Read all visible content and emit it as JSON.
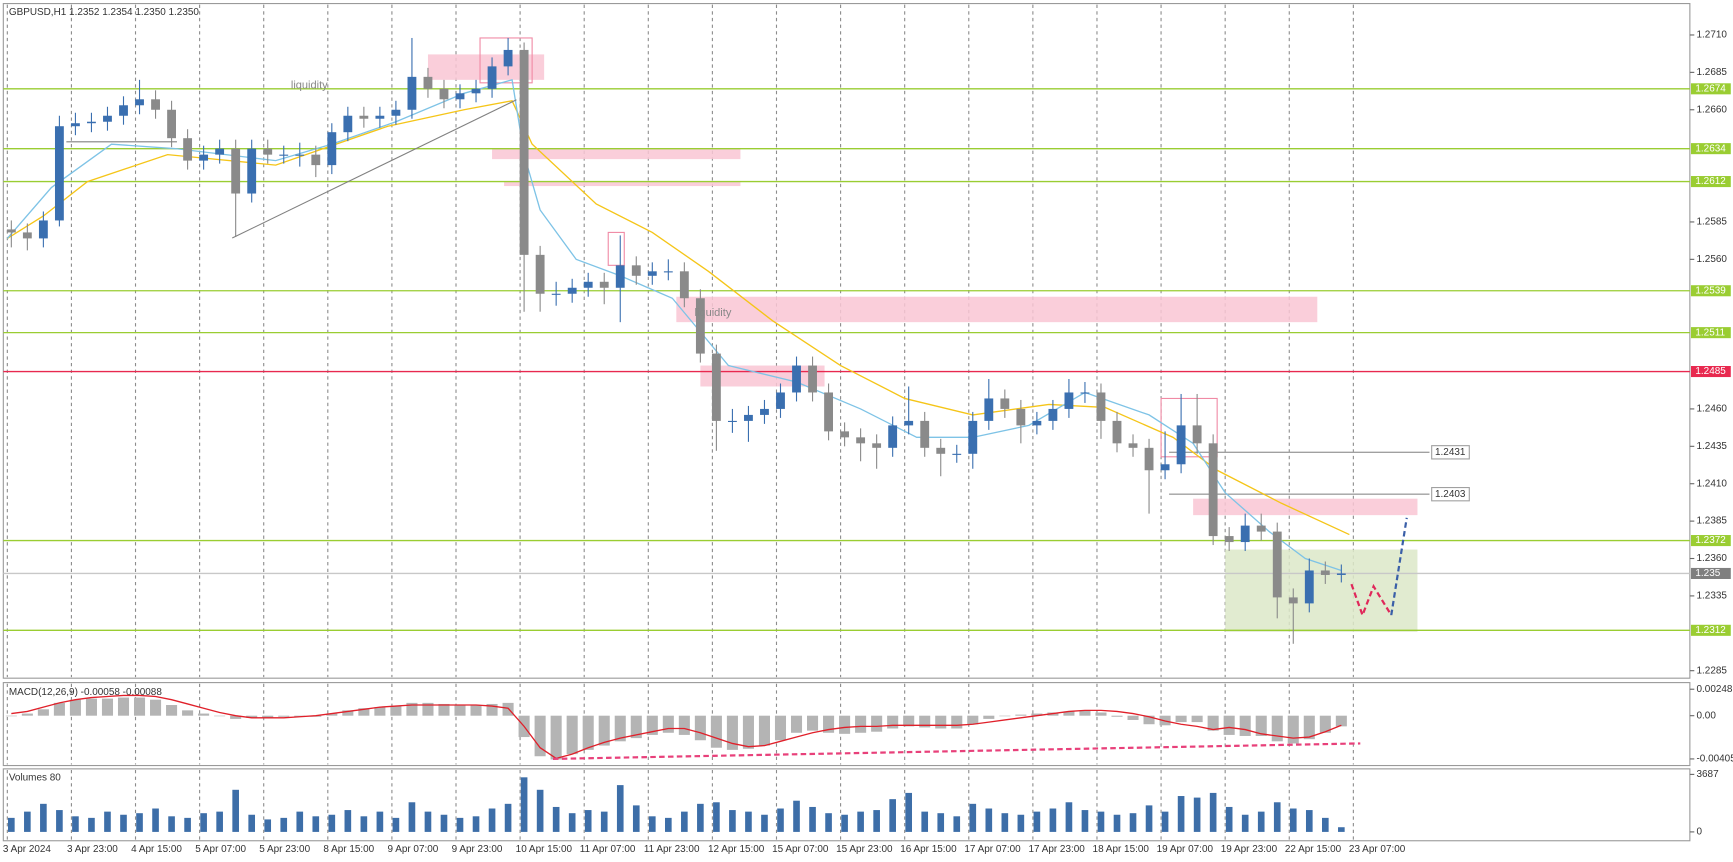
{
  "header": "GBPUSD,H1  1.2352 1.2354 1.2350 1.2350",
  "chart_data": [
    {
      "type": "candlestick",
      "up_color": "#3a6fb0",
      "down_color": "#8a8a8a",
      "xlim": [
        0,
        421
      ],
      "ylim": [
        1.228,
        1.2731
      ],
      "xticks": [
        {
          "value": 1,
          "label": "3 Apr 2024"
        },
        {
          "value": 17,
          "label": "3 Apr 23:00"
        },
        {
          "value": 33,
          "label": "4 Apr 15:00"
        },
        {
          "value": 49,
          "label": "5 Apr 07:00"
        },
        {
          "value": 65,
          "label": "5 Apr 23:00"
        },
        {
          "value": 81,
          "label": "8 Apr 15:00"
        },
        {
          "value": 97,
          "label": "9 Apr 07:00"
        },
        {
          "value": 113,
          "label": "9 Apr 23:00"
        },
        {
          "value": 129,
          "label": "10 Apr 15:00"
        },
        {
          "value": 145,
          "label": "11 Apr 07:00"
        },
        {
          "value": 161,
          "label": "11 Apr 23:00"
        },
        {
          "value": 177,
          "label": "12 Apr 15:00"
        },
        {
          "value": 193,
          "label": "15 Apr 07:00"
        },
        {
          "value": 209,
          "label": "15 Apr 23:00"
        },
        {
          "value": 225,
          "label": "16 Apr 15:00"
        },
        {
          "value": 241,
          "label": "17 Apr 07:00"
        },
        {
          "value": 257,
          "label": "17 Apr 23:00"
        },
        {
          "value": 273,
          "label": "18 Apr 15:00"
        },
        {
          "value": 289,
          "label": "19 Apr 07:00"
        },
        {
          "value": 305,
          "label": "19 Apr 23:00"
        },
        {
          "value": 321,
          "label": "22 Apr 15:00"
        },
        {
          "value": 337,
          "label": "23 Apr 07:00"
        }
      ],
      "yticks": [
        {
          "value": 1.271,
          "label": "1.2710"
        },
        1.2685,
        {
          "value": 1.266,
          "label": "1.2660"
        },
        1.2585,
        {
          "value": 1.256,
          "label": "1.2560"
        },
        {
          "value": 1.246,
          "label": "1.2460"
        },
        1.2435,
        {
          "value": 1.241,
          "label": "1.2410"
        },
        1.2385,
        {
          "value": 1.236,
          "label": "1.2360"
        },
        1.2335,
        1.2285
      ],
      "x": [
        2,
        6,
        10,
        14,
        18,
        22,
        26,
        30,
        34,
        38,
        42,
        46,
        50,
        54,
        58,
        62,
        66,
        70,
        74,
        78,
        82,
        86,
        90,
        94,
        98,
        102,
        106,
        110,
        114,
        118,
        122,
        126,
        130,
        134,
        138,
        142,
        146,
        150,
        154,
        158,
        162,
        166,
        170,
        174,
        178,
        182,
        186,
        190,
        194,
        198,
        202,
        206,
        210,
        214,
        218,
        222,
        226,
        230,
        234,
        238,
        242,
        246,
        250,
        254,
        258,
        262,
        266,
        270,
        274,
        278,
        282,
        286,
        290,
        294,
        298,
        302,
        306,
        310,
        314,
        318,
        322,
        326,
        330,
        334
      ],
      "open": [
        1.258,
        1.2578,
        1.2574,
        1.2586,
        1.2649,
        1.2651,
        1.2652,
        1.2656,
        1.2663,
        1.2667,
        1.266,
        1.2641,
        1.2626,
        1.263,
        1.2634,
        1.2604,
        1.2634,
        1.263,
        1.263,
        1.263,
        1.2623,
        1.2645,
        1.2656,
        1.2654,
        1.2656,
        1.266,
        1.2682,
        1.2674,
        1.2667,
        1.2671,
        1.2674,
        1.2689,
        1.27,
        1.2563,
        1.2537,
        1.2537,
        1.2541,
        1.2545,
        1.2541,
        1.2556,
        1.2549,
        1.2552,
        1.2552,
        1.2534,
        1.2497,
        1.2452,
        1.2452,
        1.2456,
        1.246,
        1.2471,
        1.2489,
        1.2471,
        1.2445,
        1.2441,
        1.2437,
        1.2434,
        1.2449,
        1.2452,
        1.2434,
        1.243,
        1.243,
        1.2452,
        1.2467,
        1.246,
        1.2449,
        1.2452,
        1.246,
        1.2471,
        1.2471,
        1.2452,
        1.2437,
        1.2434,
        1.2419,
        1.2423,
        1.2449,
        1.2437,
        1.2375,
        1.2371,
        1.2382,
        1.2378,
        1.2334,
        1.233,
        1.2352,
        1.2349
      ],
      "high": [
        1.2586,
        1.2584,
        1.2592,
        1.2656,
        1.2658,
        1.2658,
        1.2662,
        1.2669,
        1.268,
        1.2673,
        1.2666,
        1.2647,
        1.2636,
        1.264,
        1.264,
        1.264,
        1.264,
        1.2636,
        1.2638,
        1.2636,
        1.2651,
        1.2662,
        1.2662,
        1.2662,
        1.2666,
        1.2708,
        1.2688,
        1.268,
        1.2677,
        1.268,
        1.2695,
        1.2708,
        1.2705,
        1.2569,
        1.2545,
        1.2547,
        1.2551,
        1.2551,
        1.2576,
        1.2562,
        1.2558,
        1.256,
        1.2558,
        1.254,
        1.2503,
        1.246,
        1.2462,
        1.2466,
        1.2477,
        1.2495,
        1.2495,
        1.2477,
        1.2451,
        1.2447,
        1.2443,
        1.2455,
        1.2475,
        1.2458,
        1.244,
        1.2436,
        1.2458,
        1.248,
        1.2473,
        1.2466,
        1.2458,
        1.2466,
        1.248,
        1.2478,
        1.2477,
        1.2458,
        1.2443,
        1.244,
        1.2445,
        1.247,
        1.247,
        1.2443,
        1.2381,
        1.239,
        1.239,
        1.2384,
        1.234,
        1.236,
        1.2358,
        1.2356
      ],
      "low": [
        1.2568,
        1.2566,
        1.2568,
        1.2582,
        1.2643,
        1.2645,
        1.2646,
        1.265,
        1.2657,
        1.2654,
        1.2635,
        1.262,
        1.262,
        1.2624,
        1.2575,
        1.2598,
        1.2624,
        1.2624,
        1.2622,
        1.2615,
        1.2617,
        1.2639,
        1.2648,
        1.2648,
        1.265,
        1.2654,
        1.2668,
        1.2661,
        1.2661,
        1.2665,
        1.2668,
        1.2683,
        1.2525,
        1.2525,
        1.2529,
        1.2531,
        1.2535,
        1.253,
        1.2518,
        1.2543,
        1.2543,
        1.2546,
        1.2528,
        1.2491,
        1.2432,
        1.2444,
        1.2438,
        1.245,
        1.2454,
        1.2465,
        1.2465,
        1.2439,
        1.2435,
        1.2425,
        1.242,
        1.2428,
        1.2443,
        1.2428,
        1.2415,
        1.2424,
        1.242,
        1.2446,
        1.2454,
        1.2437,
        1.2443,
        1.2446,
        1.2454,
        1.2464,
        1.244,
        1.2431,
        1.2428,
        1.239,
        1.2413,
        1.2417,
        1.243,
        1.2369,
        1.2365,
        1.2365,
        1.2372,
        1.232,
        1.2303,
        1.2324,
        1.2343,
        1.2344
      ],
      "close": [
        1.2578,
        1.2574,
        1.2586,
        1.2649,
        1.2651,
        1.2652,
        1.2656,
        1.2663,
        1.2667,
        1.266,
        1.2641,
        1.2626,
        1.263,
        1.2634,
        1.2604,
        1.2634,
        1.263,
        1.263,
        1.263,
        1.2623,
        1.2645,
        1.2656,
        1.2654,
        1.2656,
        1.266,
        1.2682,
        1.2674,
        1.2667,
        1.2671,
        1.2674,
        1.2689,
        1.27,
        1.2563,
        1.2537,
        1.2537,
        1.2541,
        1.2545,
        1.2541,
        1.2556,
        1.2549,
        1.2552,
        1.2552,
        1.2534,
        1.2497,
        1.2452,
        1.2452,
        1.2456,
        1.246,
        1.2471,
        1.2489,
        1.2471,
        1.2445,
        1.2441,
        1.2437,
        1.2434,
        1.2449,
        1.2452,
        1.2434,
        1.243,
        1.243,
        1.2452,
        1.2467,
        1.246,
        1.2449,
        1.2452,
        1.246,
        1.2471,
        1.2471,
        1.2452,
        1.2437,
        1.2434,
        1.2419,
        1.2423,
        1.2449,
        1.2437,
        1.2375,
        1.2371,
        1.2382,
        1.2378,
        1.2334,
        1.233,
        1.2352,
        1.2349,
        1.235
      ],
      "ma": [
        {
          "color": "#f5c518",
          "x": [
            1,
            10,
            21,
            41,
            68,
            96,
            115,
            127,
            132,
            148,
            162,
            176,
            192,
            209,
            225,
            242,
            261,
            275,
            292,
            303,
            319,
            336
          ],
          "values": [
            1.2574,
            1.2589,
            1.2612,
            1.263,
            1.2623,
            1.2649,
            1.266,
            1.2666,
            1.2637,
            1.2597,
            1.2578,
            1.2552,
            1.2519,
            1.2489,
            1.2467,
            1.2456,
            1.2463,
            1.2461,
            1.2441,
            1.2419,
            1.2397,
            1.2376
          ]
        },
        {
          "color": "#7ec3e6",
          "x": [
            1,
            12,
            27,
            43,
            68,
            82,
            98,
            115,
            127,
            130,
            134,
            143,
            154,
            167,
            181,
            198,
            214,
            228,
            242,
            256,
            270,
            286,
            297,
            305,
            316,
            325,
            334
          ],
          "values": [
            1.2574,
            1.2608,
            1.2637,
            1.2634,
            1.2626,
            1.2637,
            1.2652,
            1.2671,
            1.268,
            1.263,
            1.2593,
            1.256,
            1.2549,
            1.2534,
            1.2489,
            1.2478,
            1.246,
            1.2441,
            1.2441,
            1.2449,
            1.2471,
            1.2456,
            1.2437,
            1.2404,
            1.2378,
            1.236,
            1.2352
          ]
        }
      ],
      "zones": [
        {
          "x": [
            106,
            135
          ],
          "y": [
            1.2697,
            1.268
          ],
          "fill": "#f9c6d3"
        },
        {
          "x": [
            122,
            184
          ],
          "y": [
            1.2634,
            1.2627
          ],
          "fill": "#f9c6d3"
        },
        {
          "x": [
            125,
            184
          ],
          "y": [
            1.2612,
            1.2609
          ],
          "fill": "#f9c6d3"
        },
        {
          "x": [
            168,
            328
          ],
          "y": [
            1.2535,
            1.2518
          ],
          "fill": "#f9c6d3"
        },
        {
          "x": [
            174,
            205
          ],
          "y": [
            1.2489,
            1.2475
          ],
          "fill": "#f9c6d3"
        },
        {
          "x": [
            297,
            353
          ],
          "y": [
            1.24,
            1.2389
          ],
          "fill": "#f9c6d3"
        },
        {
          "x": [
            305,
            353
          ],
          "y": [
            1.2366,
            1.2311
          ],
          "fill": "#dce8c8"
        },
        {
          "x": [
            119,
            132
          ],
          "y": [
            1.2708,
            1.2678
          ],
          "stroke": "#f08aa5"
        },
        {
          "x": [
            151,
            155
          ],
          "y": [
            1.2578,
            1.2556
          ],
          "stroke": "#f08aa5"
        },
        {
          "x": [
            289,
            303
          ],
          "y": [
            1.2467,
            1.2428
          ],
          "stroke": "#f08aa5"
        }
      ],
      "levels": [
        {
          "value": 1.2674,
          "color": "#9acd32"
        },
        {
          "value": 1.2634,
          "color": "#9acd32"
        },
        {
          "value": 1.2612,
          "color": "#9acd32"
        },
        {
          "value": 1.2539,
          "color": "#9acd32"
        },
        {
          "value": 1.2511,
          "color": "#9acd32"
        },
        {
          "value": 1.2485,
          "color": "#e8294f"
        },
        {
          "value": 1.2372,
          "color": "#9acd32"
        },
        {
          "value": 1.2312,
          "color": "#9acd32"
        },
        {
          "value": 1.235,
          "color": "#c8c8c8",
          "label_color": "#7f7f7f"
        },
        {
          "value": 1.2431,
          "color": "#a0a0a0",
          "from": 291,
          "to": 356,
          "style": "box"
        },
        {
          "value": 1.2403,
          "color": "#a0a0a0",
          "from": 291,
          "to": 356,
          "style": "box"
        }
      ],
      "annotations": [
        "liquidity",
        "liquidity"
      ]
    },
    {
      "type": "macd",
      "title": "MACD(12,26,9) -0.00058 -0.00088",
      "ylim": [
        -0.00467,
        0.0031
      ],
      "yticks": [
        0.00248,
        {
          "value": 0,
          "label": "0.00"
        },
        -0.00405
      ],
      "histogram_color": "#b4b4b4",
      "signal_color": "#e0202a",
      "histogram": [
        0.0,
        0.0002,
        0.0006,
        0.0012,
        0.0015,
        0.0016,
        0.0016,
        0.0017,
        0.0017,
        0.0015,
        0.001,
        0.0005,
        0.0002,
        0.0,
        -0.0003,
        -0.0002,
        -0.0002,
        -0.0001,
        -0.0001,
        -0.0001,
        0.0002,
        0.0005,
        0.0007,
        0.0008,
        0.0009,
        0.0012,
        0.0012,
        0.0011,
        0.001,
        0.001,
        0.0011,
        0.0012,
        -0.002,
        -0.0038,
        -0.0041,
        -0.0036,
        -0.0032,
        -0.0028,
        -0.0024,
        -0.0021,
        -0.0018,
        -0.0016,
        -0.0018,
        -0.0023,
        -0.003,
        -0.0032,
        -0.0031,
        -0.0028,
        -0.0023,
        -0.0016,
        -0.0014,
        -0.0016,
        -0.0017,
        -0.0016,
        -0.0015,
        -0.0012,
        -0.001,
        -0.0011,
        -0.0012,
        -0.0012,
        -0.0008,
        -0.0003,
        0.0,
        0.0001,
        0.0002,
        0.0003,
        0.0004,
        0.0005,
        0.0003,
        -0.0001,
        -0.0004,
        -0.0008,
        -0.0009,
        -0.0006,
        -0.0006,
        -0.0014,
        -0.0018,
        -0.0019,
        -0.0019,
        -0.0024,
        -0.0026,
        -0.0022,
        -0.0016,
        -0.001
      ],
      "signal": [
        0.0002,
        0.0004,
        0.0008,
        0.0012,
        0.0015,
        0.0017,
        0.0018,
        0.0019,
        0.0019,
        0.0018,
        0.0015,
        0.0011,
        0.0007,
        0.0003,
        0.0,
        -0.0002,
        -0.0002,
        -0.0002,
        -0.0001,
        0.0,
        0.0002,
        0.0004,
        0.0006,
        0.0008,
        0.0009,
        0.001,
        0.001,
        0.001,
        0.001,
        0.001,
        0.0009,
        0.0007,
        -0.001,
        -0.003,
        -0.004,
        -0.0036,
        -0.003,
        -0.0025,
        -0.0021,
        -0.0018,
        -0.0015,
        -0.0012,
        -0.0012,
        -0.0016,
        -0.0021,
        -0.0026,
        -0.0029,
        -0.0028,
        -0.0024,
        -0.002,
        -0.0016,
        -0.0013,
        -0.0011,
        -0.001,
        -0.001,
        -0.0009,
        -0.0009,
        -0.0009,
        -0.0009,
        -0.0009,
        -0.0008,
        -0.0006,
        -0.0004,
        -0.0002,
        0.0,
        0.0002,
        0.0004,
        0.0005,
        0.0005,
        0.0004,
        0.0002,
        -0.0001,
        -0.0005,
        -0.0008,
        -0.001,
        -0.0013,
        -0.0011,
        -0.0013,
        -0.0017,
        -0.0019,
        -0.0021,
        -0.002,
        -0.0015,
        -0.0009
      ]
    },
    {
      "type": "volume",
      "title": "Volumes 80",
      "color": "#3d6ea8",
      "ylim": [
        -567,
        4042
      ],
      "yticks": [
        0,
        3687
      ],
      "values": [
        900,
        1300,
        1800,
        1400,
        1000,
        900,
        1300,
        1100,
        1200,
        1500,
        1000,
        900,
        1200,
        1300,
        2700,
        1100,
        800,
        900,
        1300,
        1000,
        1100,
        1400,
        1000,
        1300,
        900,
        1900,
        1300,
        1100,
        900,
        1000,
        1500,
        1800,
        3500,
        2700,
        1600,
        1200,
        1400,
        1300,
        3000,
        1700,
        1000,
        900,
        1300,
        1800,
        1900,
        1400,
        1300,
        1100,
        1500,
        2000,
        1600,
        1200,
        1100,
        1300,
        1400,
        2100,
        2500,
        1300,
        1200,
        1000,
        1800,
        1500,
        1200,
        1100,
        1300,
        1500,
        1900,
        1400,
        1300,
        1100,
        1200,
        1700,
        1300,
        2300,
        2200,
        2500,
        1600,
        1100,
        1300,
        1900,
        1500,
        1400,
        900,
        300
      ]
    }
  ]
}
